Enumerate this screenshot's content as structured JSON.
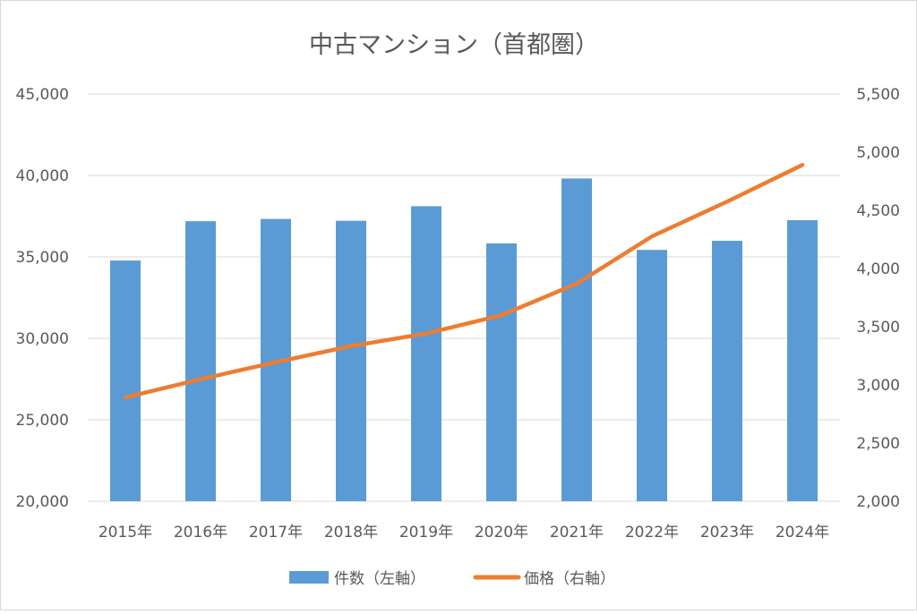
{
  "chart_data": {
    "type": "bar+line",
    "title": "中古マンション（首都圏）",
    "categories": [
      "2015年",
      "2016年",
      "2017年",
      "2018年",
      "2019年",
      "2020年",
      "2021年",
      "2022年",
      "2023年",
      "2024年"
    ],
    "series": [
      {
        "name": "件数（左軸）",
        "type": "bar",
        "axis": "left",
        "color": "#5b9bd5",
        "values": [
          34776,
          37189,
          37329,
          37217,
          38109,
          35825,
          39812,
          35429,
          35987,
          37250
        ]
      },
      {
        "name": "価格（右軸）",
        "type": "line",
        "axis": "right",
        "color": "#ed7d31",
        "values": [
          2892,
          3049,
          3195,
          3333,
          3442,
          3599,
          3869,
          4276,
          4575,
          4890
        ]
      }
    ],
    "y_left": {
      "min": 20000,
      "max": 45000,
      "step": 5000,
      "tick_labels": [
        "20,000",
        "25,000",
        "30,000",
        "35,000",
        "40,000",
        "45,000"
      ]
    },
    "y_right": {
      "min": 2000,
      "max": 5500,
      "step": 500,
      "tick_labels": [
        "2,000",
        "2,500",
        "3,000",
        "3,500",
        "4,000",
        "4,500",
        "5,000",
        "5,500"
      ]
    },
    "grid": true,
    "legend_position": "bottom"
  }
}
